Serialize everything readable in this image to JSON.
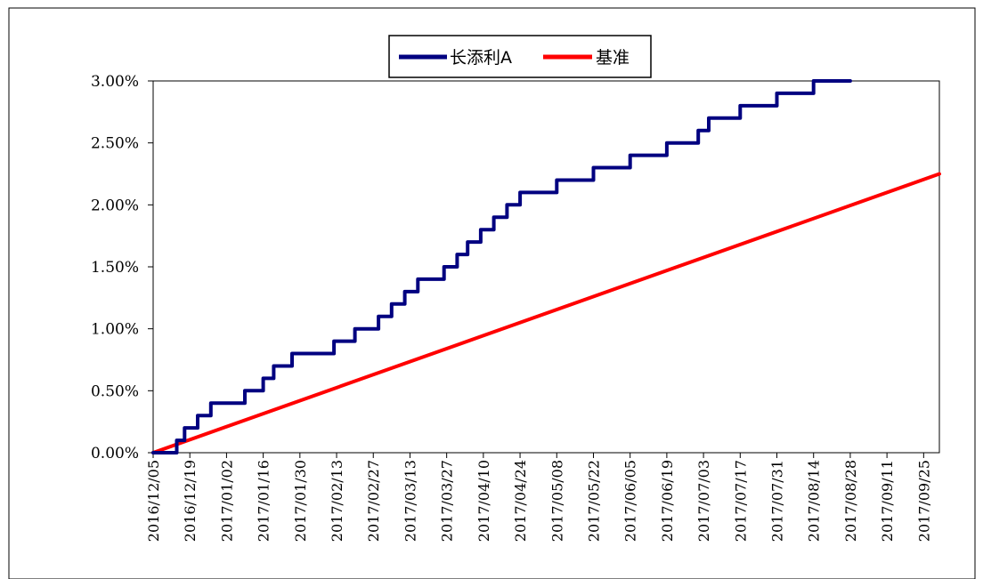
{
  "chart_data": {
    "type": "line",
    "yformat": "percent_2dp",
    "ylim": [
      0,
      3.0
    ],
    "yticks": [
      "0.00%",
      "0.50%",
      "1.00%",
      "1.50%",
      "2.00%",
      "2.50%",
      "3.00%"
    ],
    "xlim": [
      "2016/12/05",
      "2017/10/01"
    ],
    "xticks": [
      "2016/12/05",
      "2016/12/19",
      "2017/01/02",
      "2017/01/16",
      "2017/01/30",
      "2017/02/13",
      "2017/02/27",
      "2017/03/13",
      "2017/03/27",
      "2017/04/10",
      "2017/04/24",
      "2017/05/08",
      "2017/05/22",
      "2017/06/05",
      "2017/06/19",
      "2017/07/03",
      "2017/07/17",
      "2017/07/31",
      "2017/08/14",
      "2017/08/28",
      "2017/09/11",
      "2017/09/25"
    ],
    "grid": false,
    "legend": "top-center",
    "series": [
      {
        "name": "长添利A",
        "color": "#000080",
        "points": [
          [
            "2016/12/05",
            0.0
          ],
          [
            "2016/12/14",
            0.0
          ],
          [
            "2016/12/14",
            0.1
          ],
          [
            "2016/12/17",
            0.1
          ],
          [
            "2016/12/17",
            0.2
          ],
          [
            "2016/12/22",
            0.2
          ],
          [
            "2016/12/22",
            0.3
          ],
          [
            "2016/12/27",
            0.3
          ],
          [
            "2016/12/27",
            0.4
          ],
          [
            "2017/01/09",
            0.4
          ],
          [
            "2017/01/09",
            0.5
          ],
          [
            "2017/01/16",
            0.5
          ],
          [
            "2017/01/16",
            0.6
          ],
          [
            "2017/01/20",
            0.6
          ],
          [
            "2017/01/20",
            0.7
          ],
          [
            "2017/01/27",
            0.7
          ],
          [
            "2017/01/27",
            0.8
          ],
          [
            "2017/02/12",
            0.8
          ],
          [
            "2017/02/12",
            0.9
          ],
          [
            "2017/02/20",
            0.9
          ],
          [
            "2017/02/20",
            1.0
          ],
          [
            "2017/03/01",
            1.0
          ],
          [
            "2017/03/01",
            1.1
          ],
          [
            "2017/03/06",
            1.1
          ],
          [
            "2017/03/06",
            1.2
          ],
          [
            "2017/03/11",
            1.2
          ],
          [
            "2017/03/11",
            1.3
          ],
          [
            "2017/03/16",
            1.3
          ],
          [
            "2017/03/16",
            1.4
          ],
          [
            "2017/03/26",
            1.4
          ],
          [
            "2017/03/26",
            1.5
          ],
          [
            "2017/03/31",
            1.5
          ],
          [
            "2017/03/31",
            1.6
          ],
          [
            "2017/04/04",
            1.6
          ],
          [
            "2017/04/04",
            1.7
          ],
          [
            "2017/04/09",
            1.7
          ],
          [
            "2017/04/09",
            1.8
          ],
          [
            "2017/04/14",
            1.8
          ],
          [
            "2017/04/14",
            1.9
          ],
          [
            "2017/04/19",
            1.9
          ],
          [
            "2017/04/19",
            2.0
          ],
          [
            "2017/04/24",
            2.0
          ],
          [
            "2017/04/24",
            2.1
          ],
          [
            "2017/05/08",
            2.1
          ],
          [
            "2017/05/08",
            2.2
          ],
          [
            "2017/05/22",
            2.2
          ],
          [
            "2017/05/22",
            2.3
          ],
          [
            "2017/06/05",
            2.3
          ],
          [
            "2017/06/05",
            2.4
          ],
          [
            "2017/06/19",
            2.4
          ],
          [
            "2017/06/19",
            2.5
          ],
          [
            "2017/07/01",
            2.5
          ],
          [
            "2017/07/01",
            2.6
          ],
          [
            "2017/07/05",
            2.6
          ],
          [
            "2017/07/05",
            2.7
          ],
          [
            "2017/07/17",
            2.7
          ],
          [
            "2017/07/17",
            2.8
          ],
          [
            "2017/07/31",
            2.8
          ],
          [
            "2017/07/31",
            2.9
          ],
          [
            "2017/08/14",
            2.9
          ],
          [
            "2017/08/14",
            3.0
          ],
          [
            "2017/08/28",
            3.0
          ]
        ]
      },
      {
        "name": "基准",
        "color": "#ff0000",
        "points": [
          [
            "2016/12/05",
            0.0
          ],
          [
            "2017/10/01",
            2.25
          ]
        ]
      }
    ]
  }
}
